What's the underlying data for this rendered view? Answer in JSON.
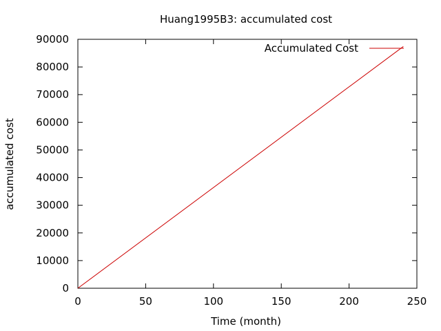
{
  "chart_data": {
    "type": "line",
    "title": "Huang1995B3: accumulated cost",
    "xlabel": "Time (month)",
    "ylabel": "accumulated cost",
    "xlim": [
      0,
      250
    ],
    "ylim": [
      0,
      90000
    ],
    "xticks": [
      0,
      50,
      100,
      150,
      200,
      250
    ],
    "yticks": [
      0,
      10000,
      20000,
      30000,
      40000,
      50000,
      60000,
      70000,
      80000,
      90000
    ],
    "grid": false,
    "legend_position": "top-right",
    "series": [
      {
        "name": "Accumulated Cost",
        "color": "#cc0000",
        "x": [
          0,
          240
        ],
        "y": [
          0,
          87400
        ]
      }
    ]
  }
}
